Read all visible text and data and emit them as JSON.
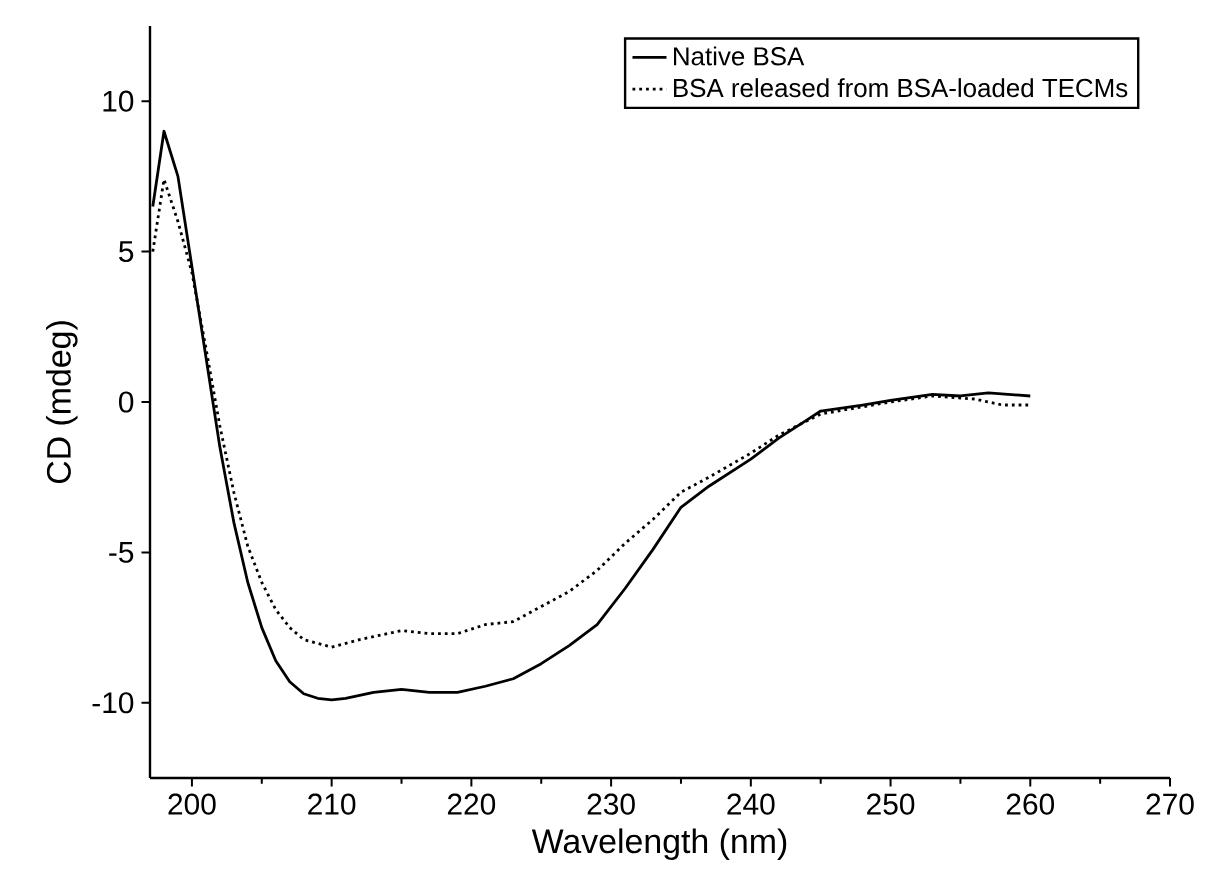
{
  "chart_data": {
    "type": "line",
    "xlabel": "Wavelength (nm)",
    "ylabel": "CD (mdeg)",
    "xlim": [
      197,
      270
    ],
    "ylim": [
      -12.5,
      12.5
    ],
    "xticks": [
      200,
      210,
      220,
      230,
      240,
      250,
      260,
      270
    ],
    "yticks": [
      -10,
      -5,
      0,
      5,
      10
    ],
    "grid": false,
    "legend": "top right",
    "marker": "none",
    "series": [
      {
        "name": "Native BSA",
        "color": "#000000",
        "line_style": "solid",
        "x": [
          197.2,
          198,
          199,
          200,
          201,
          202,
          203,
          204,
          205,
          206,
          207,
          208,
          209,
          210,
          211,
          212,
          213,
          215,
          217,
          219,
          221,
          223,
          225,
          227,
          229,
          231,
          233,
          235,
          237,
          240,
          242,
          244,
          245,
          248,
          250,
          253,
          255,
          257,
          260
        ],
        "values": [
          6.5,
          9.0,
          7.5,
          4.5,
          1.5,
          -1.5,
          -4,
          -6,
          -7.5,
          -8.6,
          -9.3,
          -9.7,
          -9.85,
          -9.9,
          -9.85,
          -9.75,
          -9.65,
          -9.55,
          -9.65,
          -9.65,
          -9.45,
          -9.2,
          -8.7,
          -8.1,
          -7.4,
          -6.2,
          -4.9,
          -3.5,
          -2.8,
          -1.9,
          -1.2,
          -0.6,
          -0.3,
          -0.1,
          0.05,
          0.25,
          0.2,
          0.3,
          0.2
        ]
      },
      {
        "name": "BSA released from BSA-loaded TECMs",
        "color": "#000000",
        "line_style": "dotted",
        "x": [
          197.2,
          198,
          199,
          200,
          201,
          202,
          203,
          204,
          205,
          206,
          207,
          208,
          210,
          212,
          213,
          215,
          217,
          219,
          221,
          223,
          225,
          227,
          229,
          231,
          233,
          235,
          237,
          240,
          242,
          245,
          250,
          253,
          256,
          258,
          260
        ],
        "values": [
          5,
          7.4,
          6,
          4.3,
          1.8,
          -0.8,
          -3,
          -4.8,
          -6,
          -6.9,
          -7.5,
          -7.9,
          -8.15,
          -7.9,
          -7.8,
          -7.6,
          -7.7,
          -7.7,
          -7.4,
          -7.3,
          -6.8,
          -6.3,
          -5.6,
          -4.7,
          -3.9,
          -3.0,
          -2.5,
          -1.7,
          -1.1,
          -0.4,
          0,
          0.2,
          0.1,
          -0.1,
          -0.1
        ]
      }
    ]
  }
}
